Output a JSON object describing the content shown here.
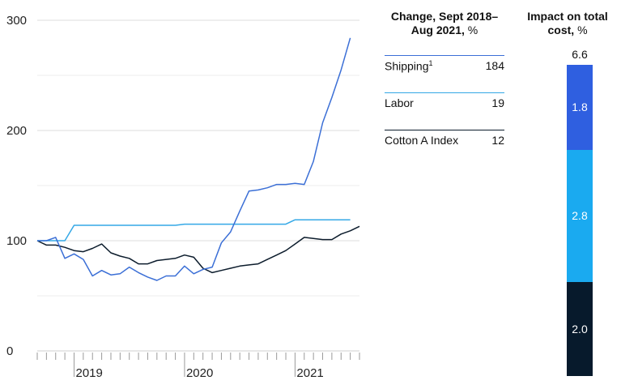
{
  "chart_data": {
    "type": "line",
    "y_ticks": [
      "300",
      "200",
      "100",
      "0"
    ],
    "y_tick_values": [
      300,
      200,
      100,
      0
    ],
    "ylim": [
      0,
      300
    ],
    "x_labels": [
      "2019",
      "2020",
      "2021"
    ],
    "x_label_month_index": [
      4,
      16,
      28
    ],
    "x_month_count": 36,
    "series": [
      {
        "name": "Shipping",
        "color": "#3b6fd6",
        "values": [
          100,
          100,
          103,
          84,
          88,
          83,
          68,
          73,
          69,
          70,
          76,
          71,
          67,
          64,
          68,
          68,
          77,
          70,
          74,
          76,
          98,
          108,
          127,
          145,
          146,
          148,
          151,
          151,
          152,
          151,
          172,
          207,
          230,
          255,
          284
        ]
      },
      {
        "name": "Labor",
        "color": "#34a8e6",
        "values": [
          100,
          100,
          100,
          100,
          114,
          114,
          114,
          114,
          114,
          114,
          114,
          114,
          114,
          114,
          114,
          114,
          115,
          115,
          115,
          115,
          115,
          115,
          115,
          115,
          115,
          115,
          115,
          115,
          119,
          119,
          119,
          119,
          119,
          119,
          119
        ]
      },
      {
        "name": "Cotton A Index",
        "color": "#0c1c2c",
        "values": [
          100,
          96,
          96,
          94,
          91,
          90,
          93,
          97,
          89,
          86,
          84,
          79,
          79,
          82,
          83,
          84,
          87,
          85,
          75,
          71,
          73,
          75,
          77,
          78,
          79,
          83,
          87,
          91,
          97,
          103,
          102,
          101,
          101,
          106,
          109,
          113
        ]
      }
    ]
  },
  "table": {
    "header": "Change, Sept 2018–Aug 2021,",
    "unit": "%",
    "rows": [
      {
        "label": "Shipping",
        "sup": "1",
        "value": "184",
        "color": "#3b6fd6"
      },
      {
        "label": "Labor",
        "sup": "",
        "value": "19",
        "color": "#34a8e6"
      },
      {
        "label": "Cotton A Index",
        "sup": "",
        "value": "12",
        "color": "#0c1c2c"
      }
    ]
  },
  "impact": {
    "header": "Impact on total cost,",
    "unit": "%",
    "total": "6.6",
    "segments": [
      {
        "label": "1.8",
        "value": 1.8,
        "color": "#2f5fe0"
      },
      {
        "label": "2.8",
        "value": 2.8,
        "color": "#1aaaf0"
      },
      {
        "label": "2.0",
        "value": 2.0,
        "color": "#071a2c"
      }
    ]
  }
}
